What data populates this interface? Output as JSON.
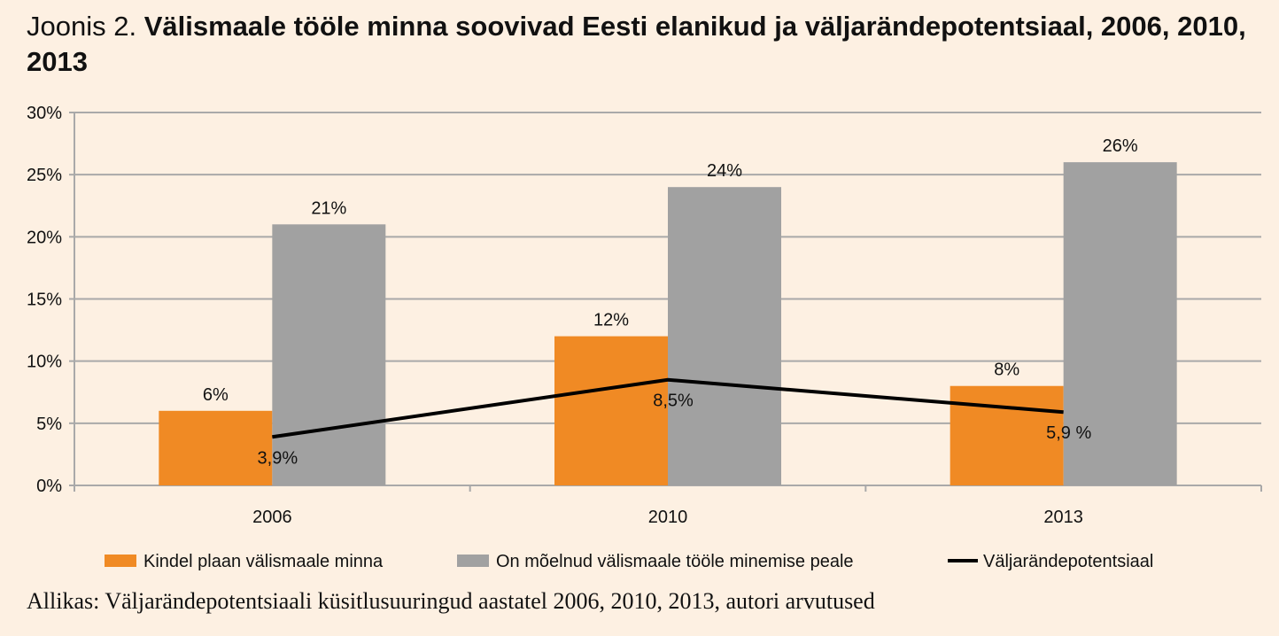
{
  "title": {
    "prefix": "Joonis 2.",
    "main": "Välismaale tööle minna soovivad Eesti elanikud ja väljarändepotentsiaal, 2006, 2010, 2013"
  },
  "source": "Allikas: Väljarändepotentsiaali küsitlusuuringud aastatel 2006, 2010, 2013, autori arvutused",
  "colors": {
    "orange": "#f08a24",
    "gray": "#a1a1a1",
    "line": "#000000",
    "grid": "#a9a9a9"
  },
  "chart_data": {
    "type": "bar",
    "categories": [
      "2006",
      "2010",
      "2013"
    ],
    "ylim": [
      0,
      30
    ],
    "yticks": [
      {
        "value": 0,
        "label": "0%"
      },
      {
        "value": 5,
        "label": "5%"
      },
      {
        "value": 10,
        "label": "10%"
      },
      {
        "value": 15,
        "label": "15%"
      },
      {
        "value": 20,
        "label": "20%"
      },
      {
        "value": 25,
        "label": "25%"
      },
      {
        "value": 30,
        "label": "30%"
      }
    ],
    "grid": true,
    "legend_position": "bottom",
    "series": [
      {
        "name": "Kindel plaan välismaale minna",
        "kind": "bar",
        "color": "#f08a24",
        "values": [
          6,
          12,
          8
        ],
        "labels": [
          "6%",
          "12%",
          "8%"
        ]
      },
      {
        "name": "On mõelnud välismaale tööle minemise peale",
        "kind": "bar",
        "color": "#a1a1a1",
        "values": [
          21,
          24,
          26
        ],
        "labels": [
          "21%",
          "24%",
          "26%"
        ]
      },
      {
        "name": "Väljarändepotentsiaal",
        "kind": "line",
        "color": "#000000",
        "values": [
          3.9,
          8.5,
          5.9
        ],
        "labels": [
          "3,9%",
          "8,5%",
          "5,9 %"
        ]
      }
    ]
  }
}
